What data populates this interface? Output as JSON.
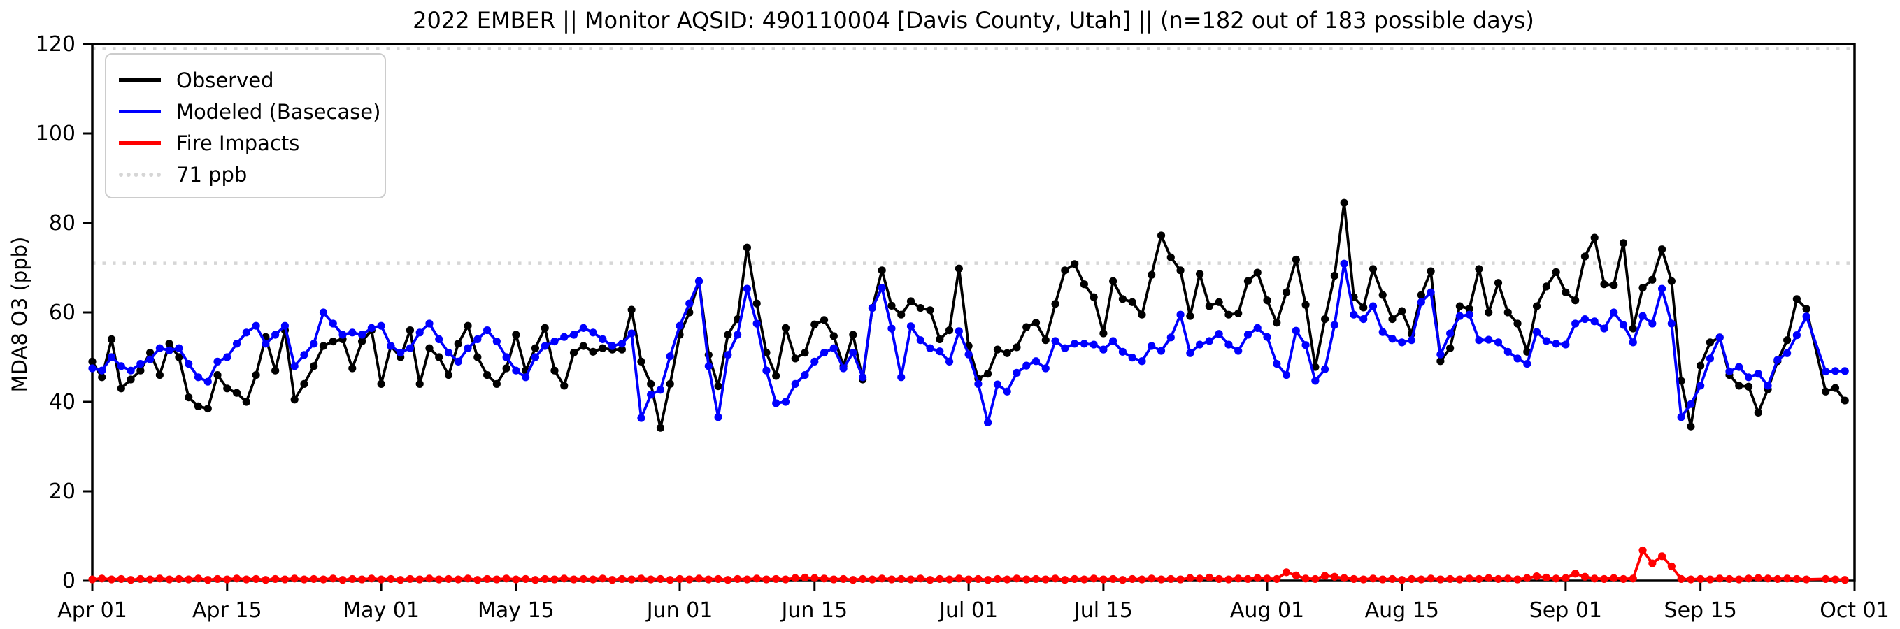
{
  "title": "2022 EMBER || Monitor AQSID: 490110004 [Davis County, Utah] || (n=182 out of 183 possible days)",
  "legend": {
    "items": [
      {
        "label": "Observed",
        "color": "#000000",
        "style": "solid"
      },
      {
        "label": "Modeled (Basecase)",
        "color": "#0000ff",
        "style": "solid"
      },
      {
        "label": "Fire Impacts",
        "color": "#ff0000",
        "style": "solid"
      },
      {
        "label": "71 ppb",
        "color": "#d6d6d6",
        "style": "dotted"
      }
    ]
  },
  "chart_data": {
    "type": "line",
    "title": "2022 EMBER || Monitor AQSID: 490110004 [Davis County, Utah] || (n=182 out of 183 possible days)",
    "xlabel": "",
    "ylabel": "MDA8 O3 (ppb)",
    "ylim": [
      0,
      120
    ],
    "x_start_date": "Apr 01",
    "x_end_date": "Oct 01",
    "n_days": 183,
    "grid": false,
    "legend_position": "upper left",
    "y_ticks": [
      0,
      20,
      40,
      60,
      80,
      100,
      120
    ],
    "x_ticks": [
      {
        "day": 0,
        "label": "Apr 01"
      },
      {
        "day": 14,
        "label": "Apr 15"
      },
      {
        "day": 30,
        "label": "May 01"
      },
      {
        "day": 44,
        "label": "May 15"
      },
      {
        "day": 61,
        "label": "Jun 01"
      },
      {
        "day": 75,
        "label": "Jun 15"
      },
      {
        "day": 91,
        "label": "Jul 01"
      },
      {
        "day": 105,
        "label": "Jul 15"
      },
      {
        "day": 122,
        "label": "Aug 01"
      },
      {
        "day": 136,
        "label": "Aug 15"
      },
      {
        "day": 153,
        "label": "Sep 01"
      },
      {
        "day": 167,
        "label": "Sep 15"
      },
      {
        "day": 183,
        "label": "Oct 01"
      }
    ],
    "reference_lines": [
      {
        "label": "71 ppb",
        "value": 71,
        "color": "#d6d6d6",
        "style": "dotted"
      },
      {
        "label": "",
        "value": 119,
        "color": "#d6d6d6",
        "style": "dotted"
      }
    ],
    "series": [
      {
        "name": "Observed",
        "color": "#000000",
        "values": [
          49,
          45.5,
          54,
          43,
          45,
          47,
          51,
          46,
          53,
          50,
          41,
          39,
          38.5,
          46,
          43,
          42,
          40,
          46,
          54.5,
          47,
          56,
          40.5,
          44,
          48,
          52.5,
          53.5,
          54,
          47.5,
          53.5,
          56,
          44,
          52.5,
          50,
          56,
          44,
          52,
          50,
          46,
          53,
          57,
          50,
          46,
          44,
          47.5,
          55,
          47,
          52,
          56.5,
          47,
          43.6,
          51,
          52.5,
          51.2,
          52,
          51.7,
          51.7,
          60.6,
          49,
          44,
          34.2,
          44,
          55,
          60,
          67,
          50.5,
          43.5,
          55,
          58.5,
          74.5,
          62,
          51,
          45.8,
          56.5,
          49.7,
          51,
          57.3,
          58.3,
          54.7,
          48,
          55,
          45,
          61,
          69.4,
          61.5,
          59.5,
          62.5,
          61,
          60.5,
          54,
          56,
          69.8,
          52.5,
          45.2,
          46.3,
          51.7,
          50.9,
          52.2,
          56.7,
          57.7,
          53.8,
          61.9,
          69.4,
          70.8,
          66.3,
          63.4,
          55.3,
          67,
          63,
          62.3,
          59.5,
          68.4,
          77.2,
          72.3,
          69.4,
          59.2,
          68.6,
          61.4,
          62.3,
          59.5,
          59.8,
          67,
          68.9,
          62.7,
          57.7,
          64.5,
          71.8,
          61.7,
          47.8,
          58.5,
          68.2,
          84.5,
          63.4,
          61.1,
          69.7,
          63.9,
          58.5,
          60.3,
          55.2,
          63.9,
          69.2,
          49.1,
          52,
          61.4,
          60.8,
          69.7,
          60,
          66.6,
          60,
          57.5,
          51.2,
          61.4,
          65.8,
          69,
          64.5,
          62.7,
          72.5,
          76.7,
          66.3,
          66.1,
          75.5,
          56.4,
          65.5,
          67.3,
          74.1,
          67,
          44.7,
          34.5,
          48.1,
          53.3,
          54.4,
          46,
          43.6,
          43.4,
          37.6,
          42.8,
          49.1,
          53.8,
          63,
          60.8,
          null,
          42.3,
          43.1,
          40.3
        ]
      },
      {
        "name": "Modeled (Basecase)",
        "color": "#0000ff",
        "values": [
          47.5,
          47,
          50,
          48,
          47,
          48.5,
          49.5,
          52,
          51.5,
          52,
          48.5,
          45.5,
          44.5,
          49,
          50,
          53,
          55.5,
          57,
          53,
          55,
          57,
          48,
          50.5,
          53,
          60,
          57.5,
          55,
          55.5,
          55,
          56.5,
          57,
          52.5,
          51,
          52,
          55.5,
          57.5,
          54,
          51,
          49,
          52,
          54,
          56,
          53.5,
          50,
          47,
          45.5,
          50,
          52.5,
          53.5,
          54.5,
          55,
          56.5,
          55.5,
          54,
          52.5,
          53,
          55.3,
          36.4,
          41.6,
          42.7,
          50.2,
          57,
          62,
          67,
          48,
          36.6,
          50.5,
          55,
          65.3,
          57.5,
          47,
          39.7,
          40,
          44,
          46,
          49,
          51,
          52,
          47.5,
          51,
          45.5,
          61,
          65.5,
          56.4,
          45.5,
          56.9,
          53.8,
          52,
          51.3,
          49,
          55.8,
          50.6,
          44,
          35.4,
          43.9,
          42.3,
          46.5,
          48.1,
          49.1,
          47.5,
          53.6,
          52,
          53,
          53,
          52.8,
          51.7,
          53.6,
          51.2,
          49.9,
          49.1,
          52.5,
          51.4,
          54.4,
          59.5,
          50.9,
          52.8,
          53.6,
          55.2,
          52.8,
          51.4,
          55,
          56.5,
          54.5,
          48.5,
          46,
          55.9,
          52.7,
          44.7,
          47.3,
          57.2,
          70.9,
          59.5,
          58.5,
          61.4,
          55.6,
          54.1,
          53.3,
          53.8,
          62.3,
          64.5,
          50.6,
          55.3,
          59.2,
          59.5,
          53.8,
          53.9,
          53.3,
          51.2,
          49.7,
          48.5,
          55.6,
          53.6,
          53,
          52.8,
          57.5,
          58.5,
          58,
          56.4,
          60,
          57.2,
          53.3,
          59.2,
          57.5,
          65.3,
          57.5,
          36.6,
          39.5,
          43.6,
          49.7,
          54.4,
          46.8,
          47.8,
          45.5,
          46.3,
          43.6,
          49.4,
          50.9,
          54.9,
          59.1,
          null,
          46.8,
          46.9,
          46.9
        ]
      },
      {
        "name": "Fire Impacts",
        "color": "#ff0000",
        "values": [
          0.3,
          0.5,
          0.3,
          0.4,
          0.2,
          0.4,
          0.3,
          0.5,
          0.3,
          0.4,
          0.3,
          0.5,
          0.2,
          0.4,
          0.3,
          0.5,
          0.3,
          0.4,
          0.2,
          0.4,
          0.3,
          0.5,
          0.3,
          0.4,
          0.3,
          0.5,
          0.2,
          0.4,
          0.3,
          0.5,
          0.3,
          0.4,
          0.2,
          0.4,
          0.3,
          0.5,
          0.3,
          0.4,
          0.3,
          0.5,
          0.2,
          0.4,
          0.3,
          0.5,
          0.3,
          0.4,
          0.2,
          0.4,
          0.3,
          0.5,
          0.3,
          0.4,
          0.3,
          0.5,
          0.2,
          0.4,
          0.3,
          0.5,
          0.3,
          0.4,
          0.2,
          0.4,
          0.3,
          0.5,
          0.3,
          0.4,
          0.2,
          0.4,
          0.3,
          0.5,
          0.3,
          0.4,
          0.3,
          0.6,
          0.7,
          0.6,
          0.5,
          0.3,
          0.4,
          0.2,
          0.4,
          0.3,
          0.5,
          0.3,
          0.4,
          0.3,
          0.5,
          0.2,
          0.4,
          0.3,
          0.5,
          0.3,
          0.4,
          0.2,
          0.4,
          0.3,
          0.5,
          0.3,
          0.4,
          0.3,
          0.5,
          0.2,
          0.4,
          0.3,
          0.5,
          0.3,
          0.4,
          0.2,
          0.4,
          0.3,
          0.5,
          0.3,
          0.4,
          0.3,
          0.6,
          0.5,
          0.7,
          0.4,
          0.3,
          0.5,
          0.4,
          0.6,
          0.5,
          0.4,
          1.9,
          1.2,
          0.5,
          0.4,
          1.1,
          0.9,
          0.6,
          0.4,
          0.3,
          0.5,
          0.3,
          0.4,
          0.2,
          0.4,
          0.3,
          0.5,
          0.3,
          0.4,
          0.3,
          0.5,
          0.4,
          0.6,
          0.4,
          0.5,
          0.3,
          0.6,
          1.0,
          0.7,
          0.5,
          0.6,
          1.6,
          0.9,
          0.5,
          0.4,
          0.6,
          0.4,
          0.5,
          6.8,
          3.9,
          5.5,
          3.2,
          0.4,
          0.3,
          0.4,
          0.3,
          0.5,
          0.4,
          0.3,
          0.5,
          0.6,
          0.5,
          0.4,
          0.5,
          0.4,
          0.3,
          null,
          0.4,
          0.3,
          0.2
        ]
      }
    ]
  }
}
